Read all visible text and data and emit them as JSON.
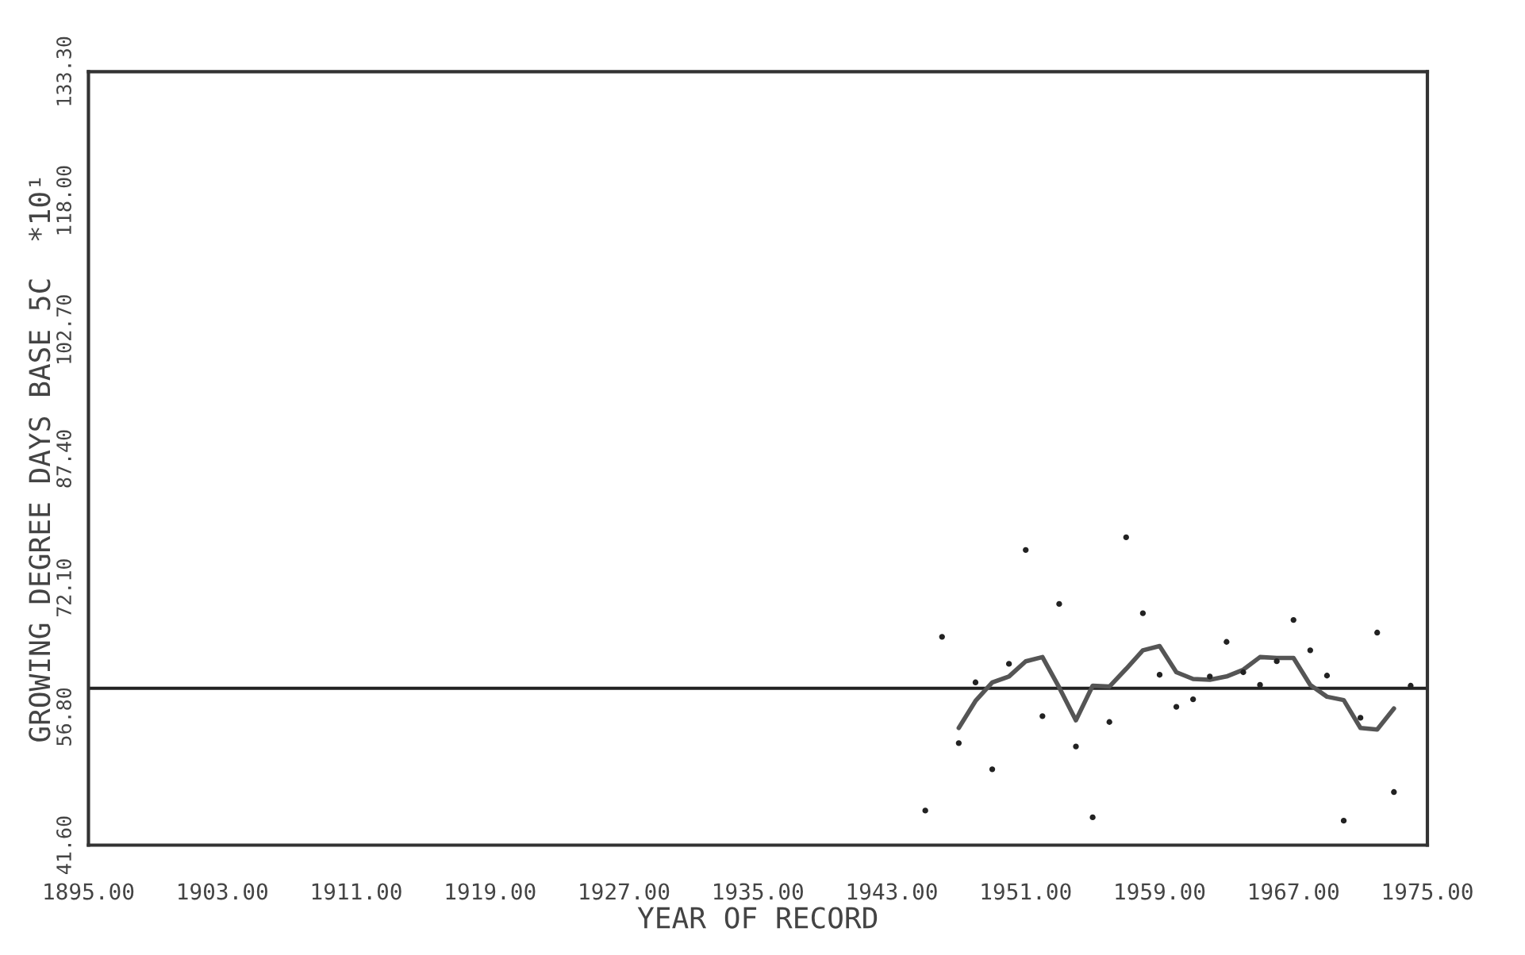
{
  "chart_data": {
    "type": "scatter",
    "xlabel": "YEAR OF RECORD",
    "ylabel": "GROWING DEGREE DAYS BASE 5C  *10¹",
    "series": [
      {
        "color": "#222222",
        "marker": "circle",
        "x": [
          1945,
          1946,
          1947,
          1948,
          1949,
          1950,
          1951,
          1952,
          1953,
          1954,
          1955,
          1956,
          1957,
          1958,
          1959,
          1960,
          1961,
          1962,
          1963,
          1964,
          1965,
          1966,
          1967,
          1968,
          1969,
          1970,
          1971,
          1972,
          1973,
          1974
        ],
        "values": [
          45.7,
          66.3,
          53.7,
          60.9,
          50.6,
          63.1,
          76.6,
          56.9,
          70.2,
          53.3,
          44.9,
          56.2,
          78.1,
          69.1,
          61.8,
          58.0,
          58.9,
          61.6,
          65.7,
          62.1,
          60.6,
          63.4,
          68.3,
          64.7,
          61.7,
          44.5,
          56.7,
          66.8,
          47.9,
          60.5
        ]
      },
      {
        "type": "line",
        "color": "#555555",
        "marker": "none",
        "line_style": "solid",
        "x": [
          1947,
          1948,
          1949,
          1950,
          1951,
          1952,
          1953,
          1954,
          1955,
          1956,
          1957,
          1958,
          1959,
          1960,
          1961,
          1962,
          1963,
          1964,
          1965,
          1966,
          1967,
          1968,
          1969,
          1970,
          1971,
          1972,
          1973
        ],
        "values": [
          55.5,
          58.7,
          60.9,
          61.6,
          63.4,
          63.9,
          60.3,
          56.4,
          60.5,
          60.4,
          62.5,
          64.7,
          65.2,
          62.1,
          61.3,
          61.2,
          61.6,
          62.4,
          63.9,
          63.8,
          63.8,
          60.6,
          59.2,
          58.8,
          55.5,
          55.3,
          57.8
        ]
      }
    ],
    "ref_lines": [
      {
        "axis": "y",
        "value": 60.2,
        "color": "#222222",
        "line_style": "solid"
      }
    ],
    "xlim": [
      1895,
      1975
    ],
    "xticks": [
      {
        "value": 1895,
        "label": "1895.00"
      },
      {
        "value": 1903,
        "label": "1903.00"
      },
      {
        "value": 1911,
        "label": "1911.00"
      },
      {
        "value": 1919,
        "label": "1919.00"
      },
      {
        "value": 1927,
        "label": "1927.00"
      },
      {
        "value": 1935,
        "label": "1935.00"
      },
      {
        "value": 1943,
        "label": "1943.00"
      },
      {
        "value": 1951,
        "label": "1951.00"
      },
      {
        "value": 1959,
        "label": "1959.00"
      },
      {
        "value": 1967,
        "label": "1967.00"
      },
      {
        "value": 1975,
        "label": "1975.00"
      }
    ],
    "ylim": [
      41.6,
      133.3
    ],
    "yticks": [
      {
        "value": 41.6,
        "label": "41.60"
      },
      {
        "value": 56.8,
        "label": "56.80"
      },
      {
        "value": 72.1,
        "label": "72.10"
      },
      {
        "value": 87.4,
        "label": "87.40"
      },
      {
        "value": 102.7,
        "label": "102.70"
      },
      {
        "value": 118.0,
        "label": "118.00"
      },
      {
        "value": 133.3,
        "label": "133.30"
      }
    ],
    "grid": false,
    "legend": false
  }
}
